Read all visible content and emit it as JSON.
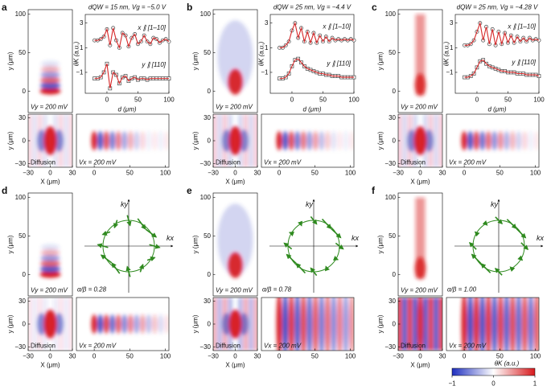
{
  "panels": [
    {
      "label": "a",
      "header": "dQW = 15 nm, Vg = −5.0 V",
      "vy_text": "Vy = 200 mV",
      "diffusion_text": "Diffusion",
      "vx_text": "Vx = 200 mV",
      "chart_data": {
        "type": "scatter-line",
        "xlabel": "d (μm)",
        "ylabel": "θK (a.u.)",
        "fit_color": "#d62728",
        "x": [
          -20,
          -15,
          -10,
          -5,
          0,
          5,
          10,
          15,
          20,
          25,
          30,
          35,
          40,
          45,
          50,
          55,
          60,
          65,
          70,
          75,
          80,
          85,
          90,
          95,
          100
        ],
        "xlim": [
          -35,
          100
        ],
        "ylim": [
          -2.7,
          3.7
        ],
        "xticks": [
          0,
          50,
          100
        ],
        "yticks": [
          {
            "value": -1,
            "label": "−1"
          },
          1,
          3
        ],
        "series": [
          {
            "name": "x ∥ [1–10]",
            "values": [
              1.6,
              1.6,
              1.7,
              1.9,
              2.5,
              1.2,
              2.6,
              1.6,
              1.0,
              2.2,
              2.0,
              1.1,
              1.8,
              2.1,
              1.3,
              1.5,
              2.0,
              1.5,
              1.3,
              1.8,
              1.7,
              1.4,
              1.6,
              1.7,
              1.5
            ]
          },
          {
            "name": "y ∥ [110]",
            "values": [
              -1.5,
              -1.5,
              -1.4,
              -1.0,
              -0.3,
              -2.3,
              -1.0,
              -1.2,
              -1.9,
              -1.4,
              -1.3,
              -1.7,
              -1.5,
              -1.4,
              -1.6,
              -1.5,
              -1.5,
              -1.6,
              -1.5,
              -1.5,
              -1.5,
              -1.5,
              -1.5,
              -1.5,
              -1.5
            ]
          }
        ]
      }
    },
    {
      "label": "b",
      "header": "dQW = 25 nm, Vg = −4.4 V",
      "vy_text": "Vy = 200 mV",
      "diffusion_text": "Diffusion",
      "vx_text": "Vx = 200 mV",
      "chart_data": {
        "type": "scatter-line",
        "xlabel": "d (μm)",
        "ylabel": "θK (a.u.)",
        "fit_color": "#d62728",
        "x": [
          -20,
          -15,
          -10,
          -5,
          0,
          5,
          10,
          15,
          20,
          25,
          30,
          35,
          40,
          45,
          50,
          55,
          60,
          65,
          70,
          75,
          80,
          85,
          90,
          95,
          100
        ],
        "xlim": [
          -35,
          100
        ],
        "ylim": [
          -2.7,
          3.7
        ],
        "xticks": [
          0,
          50,
          100
        ],
        "yticks": [
          {
            "value": -1,
            "label": "−1"
          },
          1,
          3
        ],
        "series": [
          {
            "name": "x ∥ [1–10]",
            "values": [
              1.0,
              1.0,
              1.2,
              1.5,
              2.4,
              3.0,
              1.8,
              2.6,
              1.5,
              2.3,
              1.4,
              2.2,
              1.4,
              2.0,
              1.5,
              1.9,
              1.5,
              1.8,
              1.6,
              1.7,
              1.6,
              1.7,
              1.6,
              1.7,
              1.6
            ]
          },
          {
            "name": "y ∥ [110]",
            "values": [
              -1.5,
              -1.5,
              -1.4,
              -1.1,
              -0.5,
              0.0,
              0.1,
              -0.2,
              -0.5,
              -0.7,
              -0.8,
              -0.9,
              -1.0,
              -1.1,
              -1.1,
              -1.2,
              -1.2,
              -1.3,
              -1.3,
              -1.3,
              -1.4,
              -1.4,
              -1.4,
              -1.4,
              -1.4
            ]
          }
        ]
      }
    },
    {
      "label": "c",
      "header": "dQW = 25 nm, Vg = −4.28 V",
      "vy_text": "Vy = 200 mV",
      "diffusion_text": "Diffusion",
      "vx_text": "Vx = 200 mV",
      "chart_data": {
        "type": "scatter-line",
        "xlabel": "d (μm)",
        "ylabel": "θK (a.u.)",
        "fit_color": "#d62728",
        "x": [
          -20,
          -15,
          -10,
          -5,
          0,
          5,
          10,
          15,
          20,
          25,
          30,
          35,
          40,
          45,
          50,
          55,
          60,
          65,
          70,
          75,
          80,
          85,
          90,
          95,
          100
        ],
        "xlim": [
          -35,
          100
        ],
        "ylim": [
          -2.7,
          3.7
        ],
        "xticks": [
          0,
          50,
          100
        ],
        "yticks": [
          {
            "value": -1,
            "label": "−1"
          },
          1,
          3
        ],
        "series": [
          {
            "name": "x ∥ [1–10]",
            "values": [
              1.2,
              1.2,
              1.3,
              1.6,
              2.3,
              3.0,
              1.6,
              2.7,
              1.3,
              2.5,
              1.2,
              2.3,
              1.3,
              2.2,
              1.4,
              2.0,
              1.4,
              1.9,
              1.5,
              1.8,
              1.5,
              1.8,
              1.6,
              1.7,
              1.6
            ]
          },
          {
            "name": "y ∥ [110]",
            "values": [
              -1.4,
              -1.4,
              -1.3,
              -1.1,
              -0.6,
              -0.1,
              0.0,
              -0.3,
              -0.5,
              -0.6,
              -0.7,
              -0.8,
              -0.9,
              -0.9,
              -1.0,
              -1.0,
              -1.0,
              -1.1,
              -1.1,
              -1.1,
              -1.2,
              -1.2,
              -1.2,
              -1.2,
              -1.3
            ]
          }
        ]
      }
    },
    {
      "label": "d",
      "vy_text": "Vy = 200 mV",
      "diffusion_text": "Diffusion",
      "vx_text": "Vx = 200 mV",
      "ratio": 0.28,
      "ratio_label": "α/β = 0.28",
      "kx": "kx",
      "ky": "ky"
    },
    {
      "label": "e",
      "vy_text": "Vy = 200 mV",
      "diffusion_text": "Diffusion",
      "vx_text": "Vx = 200 mV",
      "ratio": 0.78,
      "ratio_label": "α/β = 0.78",
      "kx": "kx",
      "ky": "ky"
    },
    {
      "label": "f",
      "vy_text": "Vy = 200 mV",
      "diffusion_text": "Diffusion",
      "vx_text": "Vx = 200 mV",
      "ratio": 1.0,
      "ratio_label": "α/β = 1.00",
      "kx": "kx",
      "ky": "ky"
    }
  ],
  "map_axes": {
    "top_y": {
      "label": "y (μm)",
      "ylim": [
        -28,
        106
      ],
      "ticks": [
        0,
        50,
        100
      ]
    },
    "bottom_y": {
      "label": "y (μm)",
      "ylim": [
        -35,
        35
      ],
      "ticks": [
        {
          "value": -30,
          "label": "−30"
        },
        0,
        30
      ]
    },
    "left_x": {
      "label": "X (μm)",
      "xlim": [
        -30,
        30
      ],
      "ticks": [
        {
          "value": -30,
          "label": "−30"
        },
        0,
        30
      ]
    },
    "right_x": {
      "xlim": [
        -25,
        105
      ],
      "ticks": [
        0,
        50,
        100
      ]
    }
  },
  "colorbar": {
    "label": "θK (a.u.)",
    "lim": [
      -1,
      1
    ],
    "ticks": [
      {
        "value": -1,
        "label": "−1"
      },
      0,
      1
    ]
  }
}
